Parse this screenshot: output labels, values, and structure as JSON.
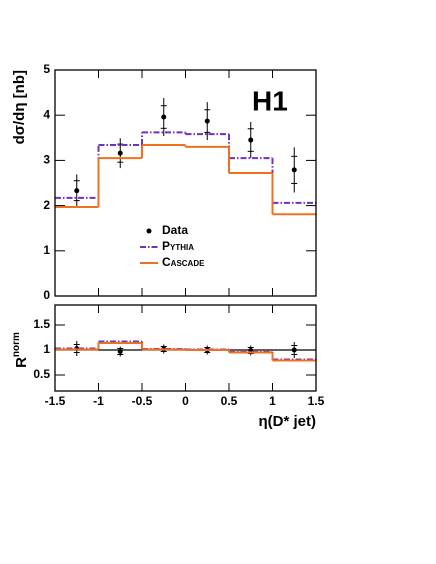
{
  "chart_data": [
    {
      "type": "step",
      "label": "H1",
      "ylabel": "dσ/dη [nb]",
      "xlim": [
        -1.5,
        1.5
      ],
      "xticks": [
        -1.5,
        -1,
        -0.5,
        0,
        0.5,
        1,
        1.5
      ],
      "ylim": [
        0,
        5
      ],
      "yticks": [
        0,
        1,
        2,
        3,
        4,
        5
      ],
      "series": [
        {
          "name": "Data",
          "color": "#000000",
          "kind": "points",
          "x": [
            -1.25,
            -0.75,
            -0.25,
            0.25,
            0.75,
            1.25
          ],
          "values": [
            2.33,
            3.16,
            3.96,
            3.87,
            3.45,
            2.79
          ],
          "stat_err": [
            0.22,
            0.2,
            0.25,
            0.25,
            0.25,
            0.3
          ],
          "total_err": [
            0.36,
            0.33,
            0.42,
            0.42,
            0.4,
            0.5
          ]
        },
        {
          "name": "Pythia",
          "color": "#7030c0",
          "kind": "hist",
          "dash": true,
          "bins": [
            -1.5,
            -1,
            -0.5,
            0,
            0.5,
            1,
            1.5
          ],
          "values": [
            2.17,
            3.34,
            3.62,
            3.58,
            3.05,
            2.06
          ]
        },
        {
          "name": "Cascade",
          "color": "#f07020",
          "kind": "hist",
          "dash": false,
          "bins": [
            -1.5,
            -1,
            -0.5,
            0,
            0.5,
            1,
            1.5
          ],
          "values": [
            1.97,
            3.05,
            3.34,
            3.3,
            2.72,
            1.81
          ]
        }
      ]
    },
    {
      "type": "step",
      "ylabel": "R",
      "ylabel_sup": "norm",
      "xlabel": "η(D* jet)",
      "xlim": [
        -1.5,
        1.5
      ],
      "xticks": [
        -1.5,
        -1,
        -0.5,
        0,
        0.5,
        1,
        1.5
      ],
      "ylim": [
        0.18,
        1.9
      ],
      "yticks": [
        0.5,
        1,
        1.5
      ],
      "reference_line": 1,
      "series": [
        {
          "name": "Data",
          "color": "#000000",
          "kind": "points",
          "x": [
            -1.25,
            -0.75,
            -0.25,
            0.25,
            0.75,
            1.25
          ],
          "values": [
            1.03,
            0.97,
            1.02,
            1.0,
            0.99,
            1.0
          ],
          "stat_err": [
            0.08,
            0.06,
            0.05,
            0.05,
            0.06,
            0.09
          ],
          "total_err": [
            0.15,
            0.1,
            0.09,
            0.09,
            0.1,
            0.16
          ]
        },
        {
          "name": "Pythia",
          "color": "#7030c0",
          "kind": "hist",
          "dash": true,
          "bins": [
            -1.5,
            -1,
            -0.5,
            0,
            0.5,
            1,
            1.5
          ],
          "values": [
            1.03,
            1.17,
            1.02,
            1.01,
            0.96,
            0.81
          ]
        },
        {
          "name": "Cascade",
          "color": "#f07020",
          "kind": "hist",
          "dash": false,
          "bins": [
            -1.5,
            -1,
            -0.5,
            0,
            0.5,
            1,
            1.5
          ],
          "values": [
            1.01,
            1.14,
            1.01,
            1.0,
            0.95,
            0.79
          ]
        }
      ]
    }
  ]
}
